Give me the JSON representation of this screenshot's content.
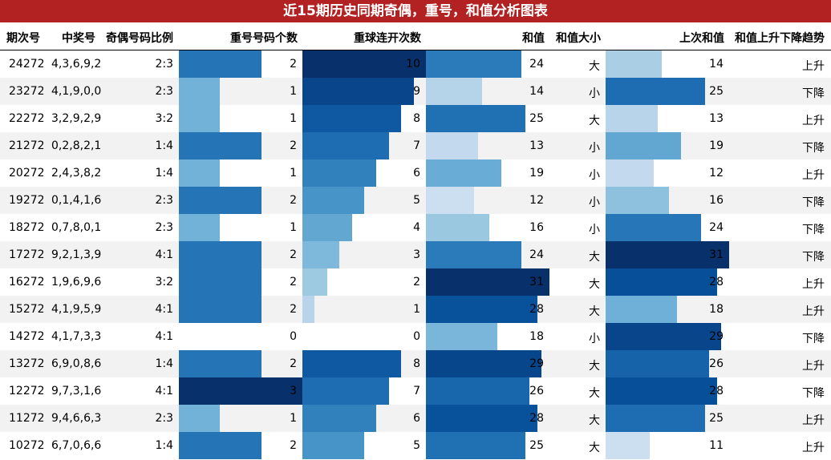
{
  "title": "近15期历史同期奇偶，重号，和值分析图表",
  "headers": {
    "period": "期次号",
    "numbers": "中奖号",
    "odd_even": "奇偶号码比例",
    "repeat_count": "重号号码个数",
    "consecutive": "重球连开次数",
    "sum": "和值",
    "sum_size": "和值大小",
    "prev_sum": "上次和值",
    "trend": "和值上升下降趋势"
  },
  "chart_data": {
    "type": "table",
    "title": "近15期历史同期奇偶，重号，和值分析图表",
    "columns": [
      "期次号",
      "中奖号",
      "奇偶号码比例",
      "重号号码个数",
      "重球连开次数",
      "和值",
      "和值大小",
      "上次和值",
      "和值上升下降趋势"
    ],
    "rows": [
      {
        "period": "24272",
        "numbers": "4,3,6,9,2",
        "odd_even": "2:3",
        "repeat": 2,
        "consecutive": 10,
        "sum": 24,
        "size": "大",
        "prev_sum": 14,
        "trend": "上升"
      },
      {
        "period": "23272",
        "numbers": "4,1,9,0,0",
        "odd_even": "2:3",
        "repeat": 1,
        "consecutive": 9,
        "sum": 14,
        "size": "小",
        "prev_sum": 25,
        "trend": "下降"
      },
      {
        "period": "22272",
        "numbers": "3,2,9,2,9",
        "odd_even": "3:2",
        "repeat": 1,
        "consecutive": 8,
        "sum": 25,
        "size": "大",
        "prev_sum": 13,
        "trend": "上升"
      },
      {
        "period": "21272",
        "numbers": "0,2,8,2,1",
        "odd_even": "1:4",
        "repeat": 2,
        "consecutive": 7,
        "sum": 13,
        "size": "小",
        "prev_sum": 19,
        "trend": "下降"
      },
      {
        "period": "20272",
        "numbers": "2,4,3,8,2",
        "odd_even": "1:4",
        "repeat": 1,
        "consecutive": 6,
        "sum": 19,
        "size": "小",
        "prev_sum": 12,
        "trend": "上升"
      },
      {
        "period": "19272",
        "numbers": "0,1,4,1,6",
        "odd_even": "2:3",
        "repeat": 2,
        "consecutive": 5,
        "sum": 12,
        "size": "小",
        "prev_sum": 16,
        "trend": "下降"
      },
      {
        "period": "18272",
        "numbers": "0,7,8,0,1",
        "odd_even": "2:3",
        "repeat": 1,
        "consecutive": 4,
        "sum": 16,
        "size": "小",
        "prev_sum": 24,
        "trend": "下降"
      },
      {
        "period": "17272",
        "numbers": "9,2,1,3,9",
        "odd_even": "4:1",
        "repeat": 2,
        "consecutive": 3,
        "sum": 24,
        "size": "大",
        "prev_sum": 31,
        "trend": "下降"
      },
      {
        "period": "16272",
        "numbers": "1,9,6,9,6",
        "odd_even": "3:2",
        "repeat": 2,
        "consecutive": 2,
        "sum": 31,
        "size": "大",
        "prev_sum": 28,
        "trend": "上升"
      },
      {
        "period": "15272",
        "numbers": "4,1,9,5,9",
        "odd_even": "4:1",
        "repeat": 2,
        "consecutive": 1,
        "sum": 28,
        "size": "大",
        "prev_sum": 18,
        "trend": "上升"
      },
      {
        "period": "14272",
        "numbers": "4,1,7,3,3",
        "odd_even": "4:1",
        "repeat": 0,
        "consecutive": 0,
        "sum": 18,
        "size": "小",
        "prev_sum": 29,
        "trend": "下降"
      },
      {
        "period": "13272",
        "numbers": "6,9,0,8,6",
        "odd_even": "1:4",
        "repeat": 2,
        "consecutive": 8,
        "sum": 29,
        "size": "大",
        "prev_sum": 26,
        "trend": "上升"
      },
      {
        "period": "12272",
        "numbers": "9,7,3,1,6",
        "odd_even": "4:1",
        "repeat": 3,
        "consecutive": 7,
        "sum": 26,
        "size": "大",
        "prev_sum": 28,
        "trend": "下降"
      },
      {
        "period": "11272",
        "numbers": "9,4,6,6,3",
        "odd_even": "2:3",
        "repeat": 1,
        "consecutive": 6,
        "sum": 28,
        "size": "大",
        "prev_sum": 25,
        "trend": "上升"
      },
      {
        "period": "10272",
        "numbers": "6,7,0,6,6",
        "odd_even": "1:4",
        "repeat": 2,
        "consecutive": 5,
        "sum": 25,
        "size": "大",
        "prev_sum": 11,
        "trend": "上升"
      }
    ],
    "bar_columns": {
      "repeat": [
        0,
        3
      ],
      "consecutive": [
        0,
        10
      ],
      "sum": [
        0,
        31
      ],
      "prev_sum": [
        0,
        31
      ]
    },
    "colormap": "blues"
  },
  "colors": {
    "banner": "#b22222",
    "row_alt": "#f2f2f2"
  }
}
